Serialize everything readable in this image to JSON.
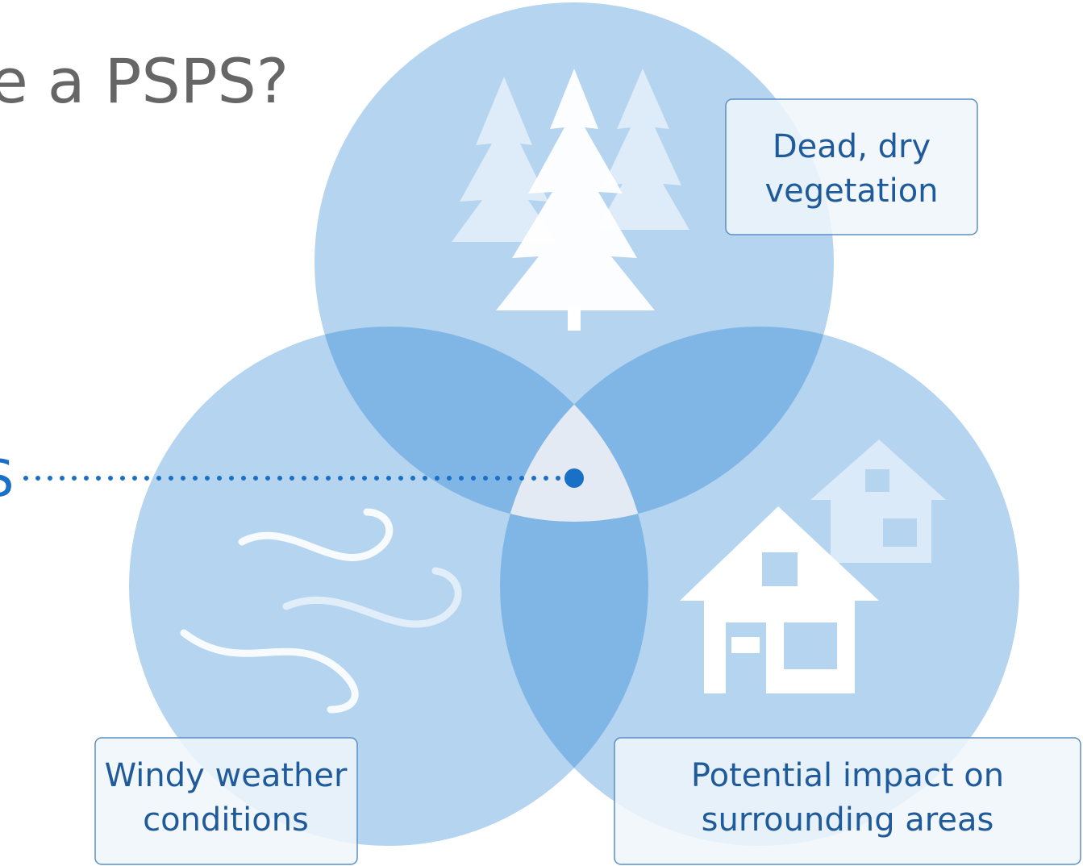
{
  "title": "e a PSPS?",
  "pointer_label": "S",
  "circles": [
    {
      "label_lines": [
        "Dead, dry",
        "vegetation"
      ]
    },
    {
      "label_lines": [
        "Windy weather",
        "conditions"
      ]
    },
    {
      "label_lines": [
        "Potential impact on",
        "surrounding areas"
      ]
    }
  ]
}
